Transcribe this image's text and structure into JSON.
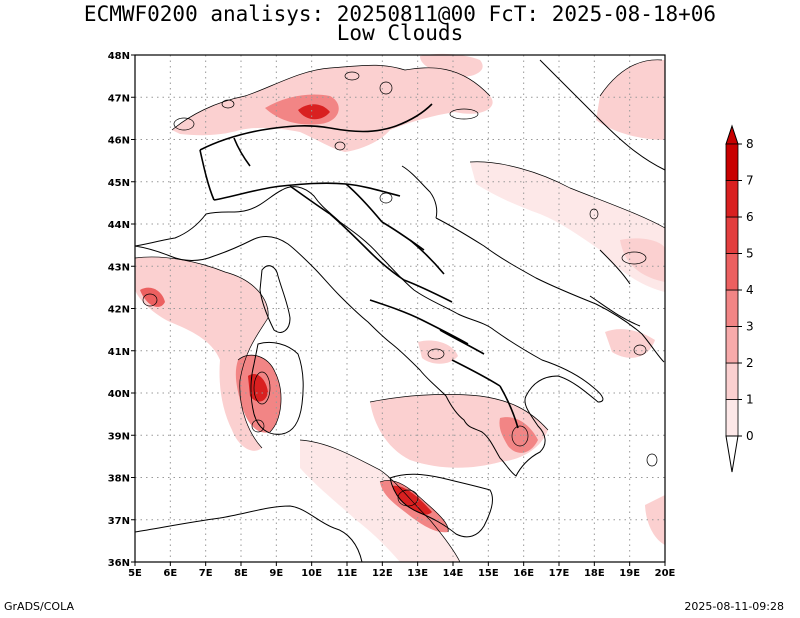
{
  "title": "ECMWF0200 analisys: 20250811@00 FcT: 2025-08-18+06",
  "subtitle": "Low Clouds",
  "footer_left": "GrADS/COLA",
  "footer_right": "2025-08-11-09:28",
  "map": {
    "lon_range": [
      5,
      20
    ],
    "lat_range": [
      36,
      48
    ],
    "lon_labels": [
      "5E",
      "6E",
      "7E",
      "8E",
      "9E",
      "10E",
      "11E",
      "12E",
      "13E",
      "14E",
      "15E",
      "16E",
      "17E",
      "18E",
      "19E",
      "20E"
    ],
    "lat_labels": [
      "36N",
      "37N",
      "38N",
      "39N",
      "40N",
      "41N",
      "42N",
      "43N",
      "44N",
      "45N",
      "46N",
      "47N",
      "48N"
    ],
    "grid": true
  },
  "colorbar": {
    "levels": [
      "0",
      "1",
      "2",
      "3",
      "4",
      "5",
      "6",
      "7",
      "8"
    ],
    "colors": [
      "#fde8e8",
      "#fbd0d0",
      "#f7aaaa",
      "#f28585",
      "#ec6060",
      "#e33e3e",
      "#d92020",
      "#c80000"
    ]
  }
}
